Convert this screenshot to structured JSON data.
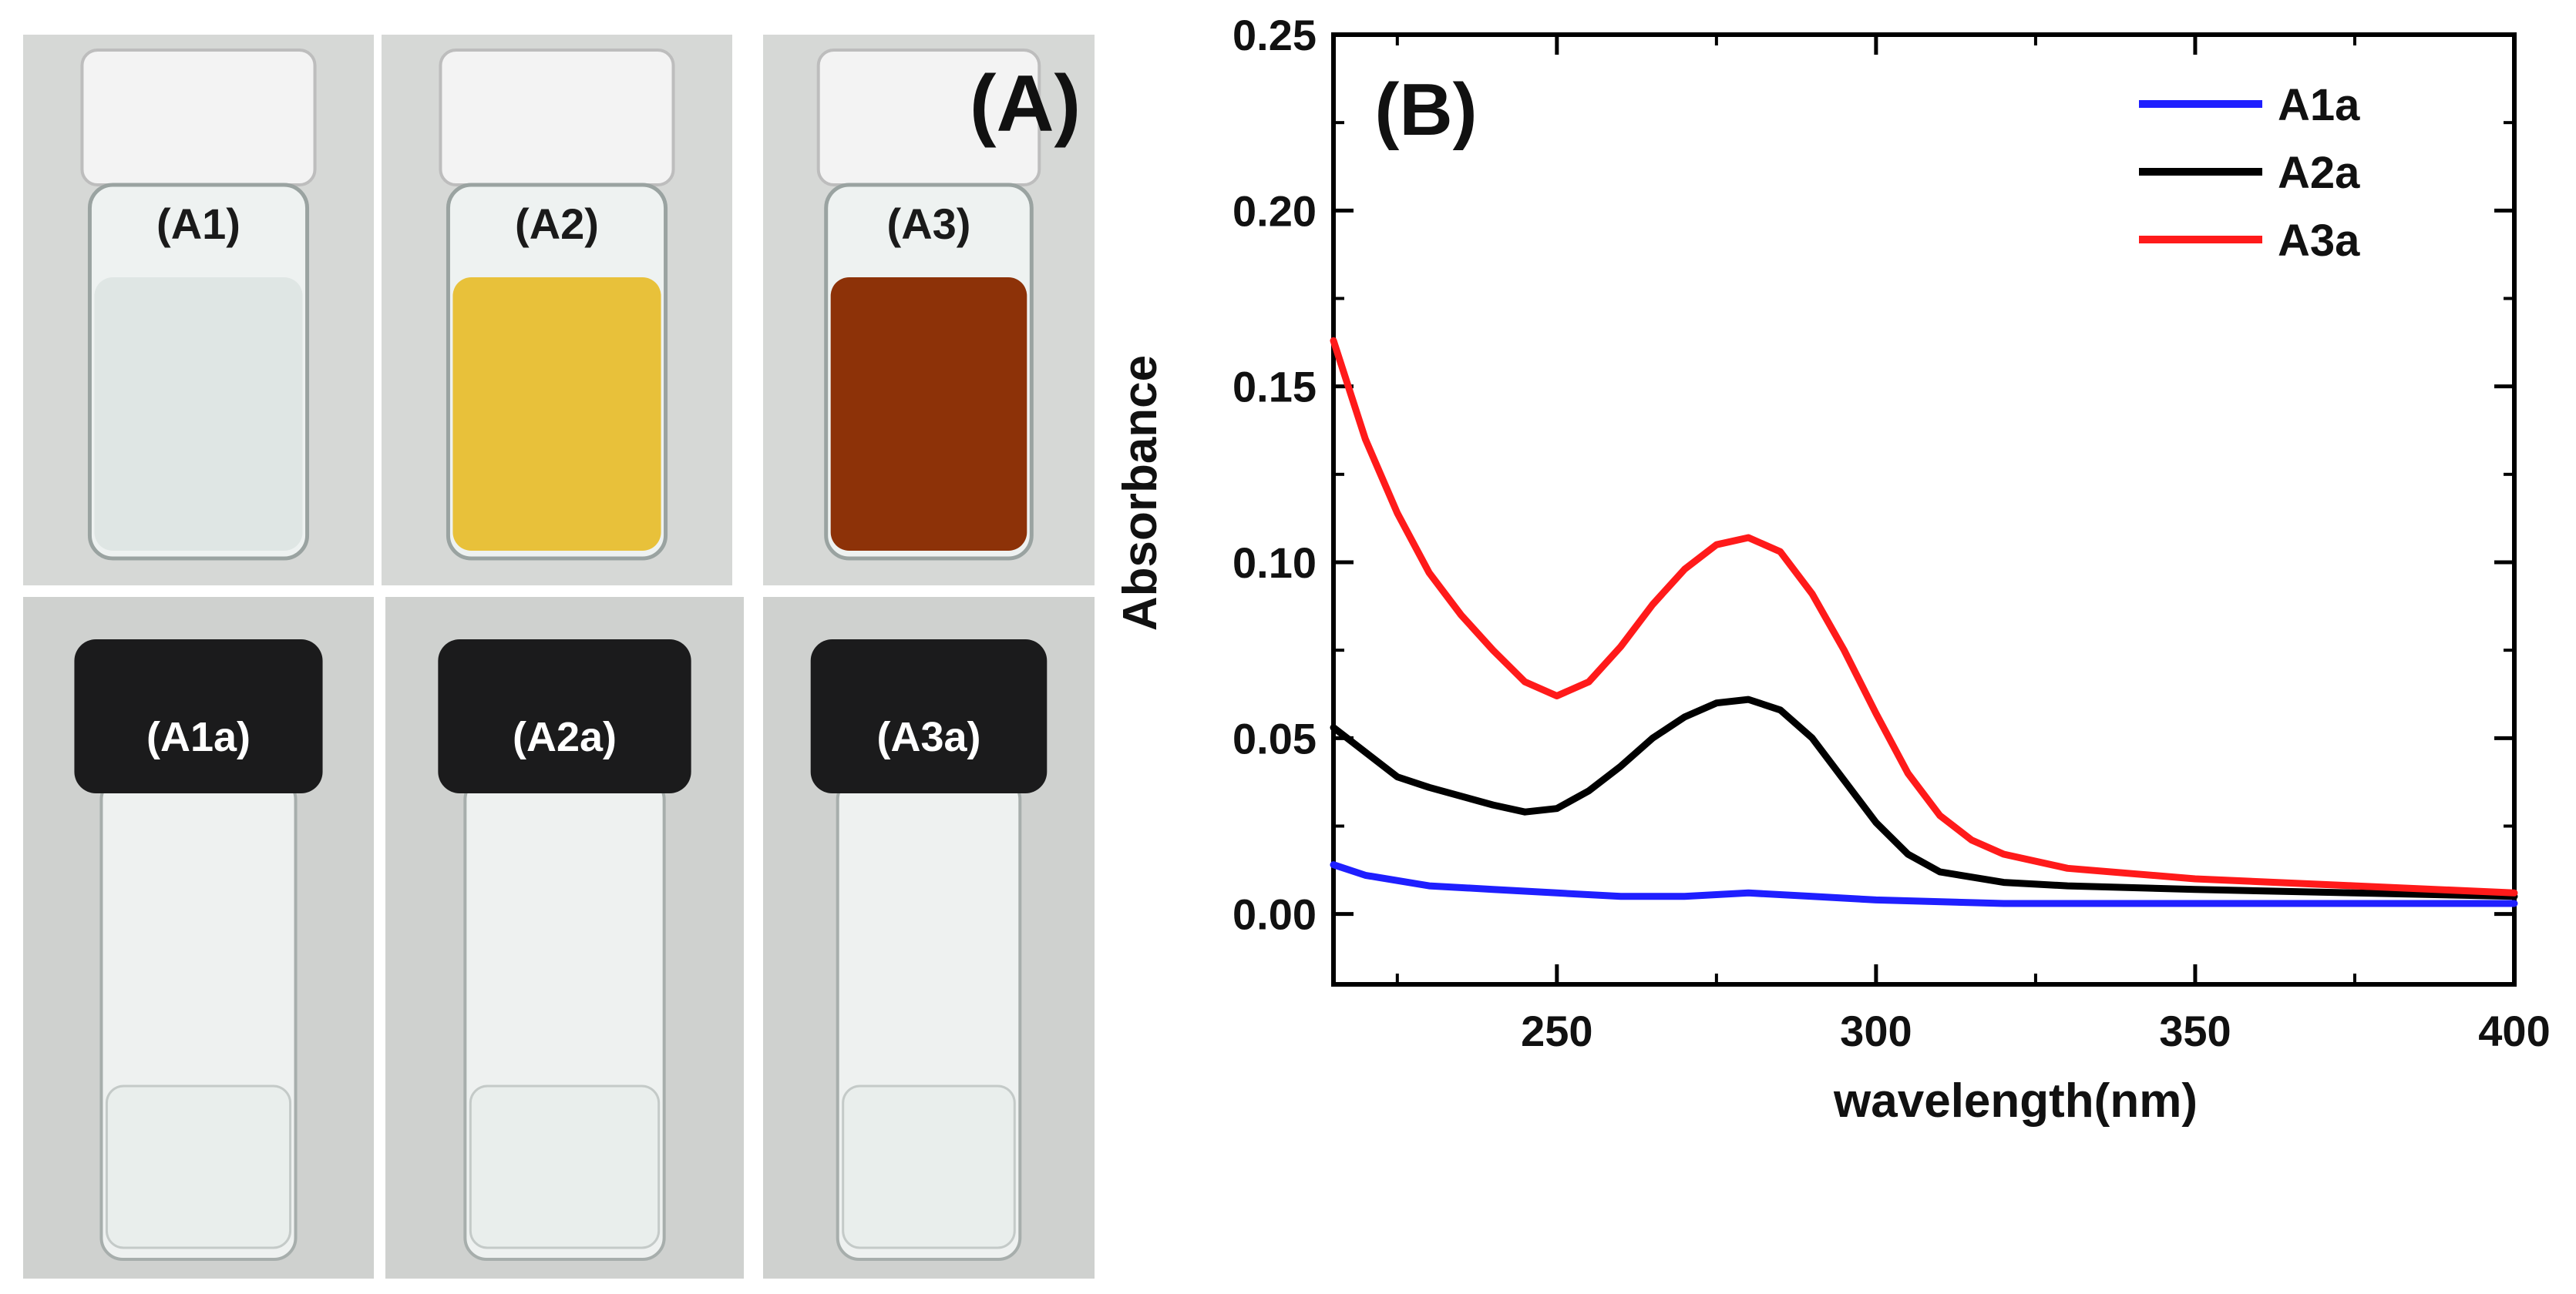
{
  "panel_a": {
    "label": "(A)",
    "vials": [
      {
        "label": "(A1)",
        "liquid_color": "#dfe6e4",
        "cap_color": "#f3f3f3"
      },
      {
        "label": "(A2)",
        "liquid_color": "#e8c13a",
        "cap_color": "#f3f3f3"
      },
      {
        "label": "(A3)",
        "liquid_color": "#8d3208",
        "cap_color": "#f3f3f3"
      },
      {
        "label": "(A1a)",
        "liquid_color": "#e9eeec",
        "cap_color": "#1b1b1c"
      },
      {
        "label": "(A2a)",
        "liquid_color": "#e9eeec",
        "cap_color": "#1b1b1c"
      },
      {
        "label": "(A3a)",
        "liquid_color": "#e9eeec",
        "cap_color": "#1b1b1c"
      }
    ]
  },
  "panel_b": {
    "label": "(B)"
  },
  "chart_data": {
    "type": "line",
    "title": "",
    "xlabel": "wavelength(nm)",
    "ylabel": "Absorbance",
    "xlim": [
      215,
      400
    ],
    "ylim": [
      -0.02,
      0.25
    ],
    "xticks": [
      250,
      300,
      350,
      400
    ],
    "xtick_labels": [
      "250",
      "300",
      "350",
      "400"
    ],
    "yticks": [
      0.0,
      0.05,
      0.1,
      0.15,
      0.2,
      0.25
    ],
    "ytick_labels": [
      "0.00",
      "0.05",
      "0.10",
      "0.15",
      "0.20",
      "0.25"
    ],
    "grid": false,
    "legend_position": "top-right",
    "series": [
      {
        "name": "A1a",
        "color": "#1f1fff",
        "x": [
          215,
          220,
          230,
          240,
          250,
          260,
          270,
          280,
          290,
          300,
          320,
          350,
          400
        ],
        "y": [
          0.014,
          0.011,
          0.008,
          0.007,
          0.006,
          0.005,
          0.005,
          0.006,
          0.005,
          0.004,
          0.003,
          0.003,
          0.003
        ]
      },
      {
        "name": "A2a",
        "color": "#000000",
        "x": [
          215,
          220,
          225,
          230,
          240,
          245,
          250,
          255,
          260,
          265,
          270,
          275,
          280,
          285,
          290,
          295,
          300,
          305,
          310,
          320,
          330,
          350,
          375,
          400
        ],
        "y": [
          0.053,
          0.046,
          0.039,
          0.036,
          0.031,
          0.029,
          0.03,
          0.035,
          0.042,
          0.05,
          0.056,
          0.06,
          0.061,
          0.058,
          0.05,
          0.038,
          0.026,
          0.017,
          0.012,
          0.009,
          0.008,
          0.007,
          0.006,
          0.005
        ]
      },
      {
        "name": "A3a",
        "color": "#ff1a1a",
        "x": [
          215,
          220,
          225,
          230,
          235,
          240,
          245,
          250,
          255,
          260,
          265,
          270,
          275,
          280,
          285,
          290,
          295,
          300,
          305,
          310,
          315,
          320,
          330,
          350,
          375,
          400
        ],
        "y": [
          0.163,
          0.135,
          0.114,
          0.097,
          0.085,
          0.075,
          0.066,
          0.062,
          0.066,
          0.076,
          0.088,
          0.098,
          0.105,
          0.107,
          0.103,
          0.091,
          0.075,
          0.057,
          0.04,
          0.028,
          0.021,
          0.017,
          0.013,
          0.01,
          0.008,
          0.006
        ]
      }
    ]
  }
}
